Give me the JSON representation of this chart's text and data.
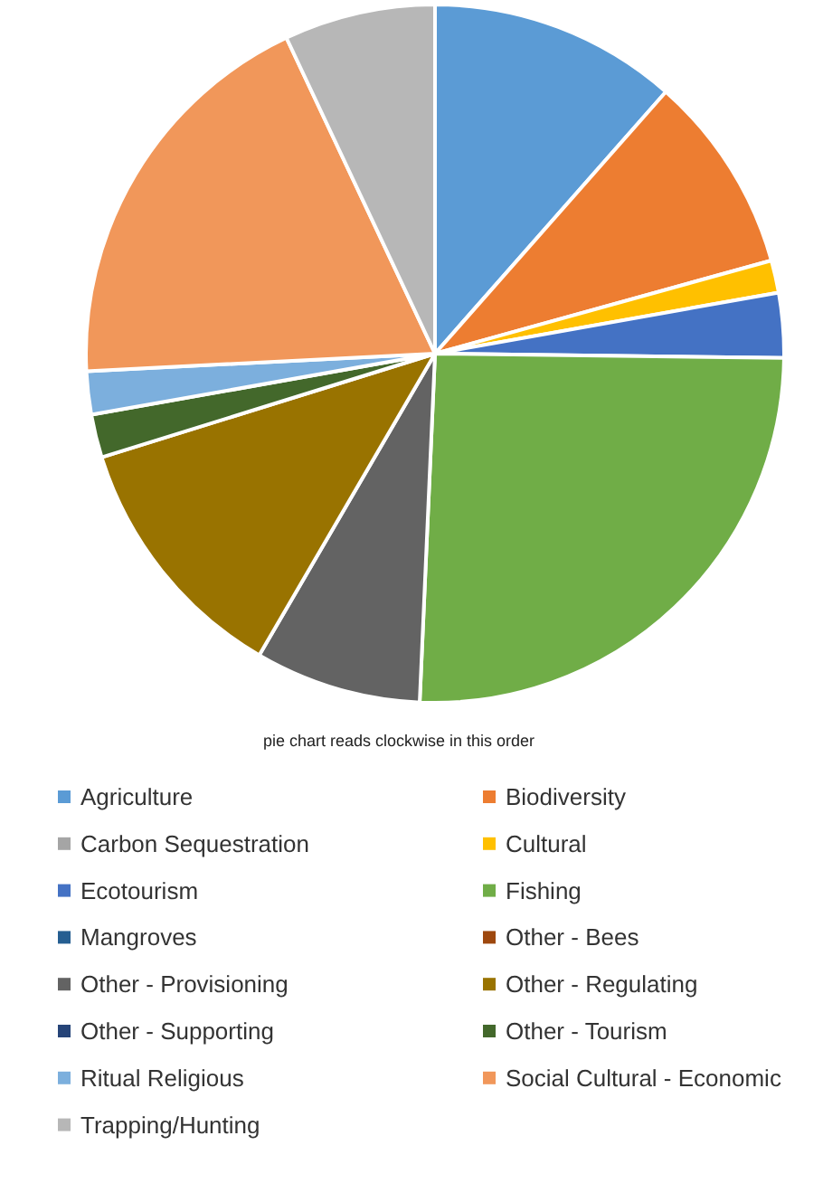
{
  "chart_data": {
    "type": "pie",
    "categories": [
      "Agriculture",
      "Biodiversity",
      "Carbon Sequestration",
      "Cultural",
      "Ecotourism",
      "Fishing",
      "Mangroves",
      "Other - Bees",
      "Other - Provisioning",
      "Other - Regulating",
      "Other - Supporting",
      "Other - Tourism",
      "Ritual Religious",
      "Social Cultural - Economic",
      "Trapping/Hunting"
    ],
    "values": [
      11.5,
      9.2,
      0,
      1.5,
      3,
      25.5,
      0,
      0,
      7.7,
      11.8,
      0,
      2,
      2,
      18.8,
      7
    ],
    "colors": [
      "#5b9bd5",
      "#ed7d31",
      "#a5a5a5",
      "#ffc000",
      "#4472c4",
      "#70ad47",
      "#255e91",
      "#9e480e",
      "#636363",
      "#997300",
      "#264478",
      "#43682b",
      "#7cafdd",
      "#f1975a",
      "#b7b7b7"
    ],
    "annotations": [
      "pie chart reads clockwise in this order"
    ],
    "legend": "bottom"
  }
}
